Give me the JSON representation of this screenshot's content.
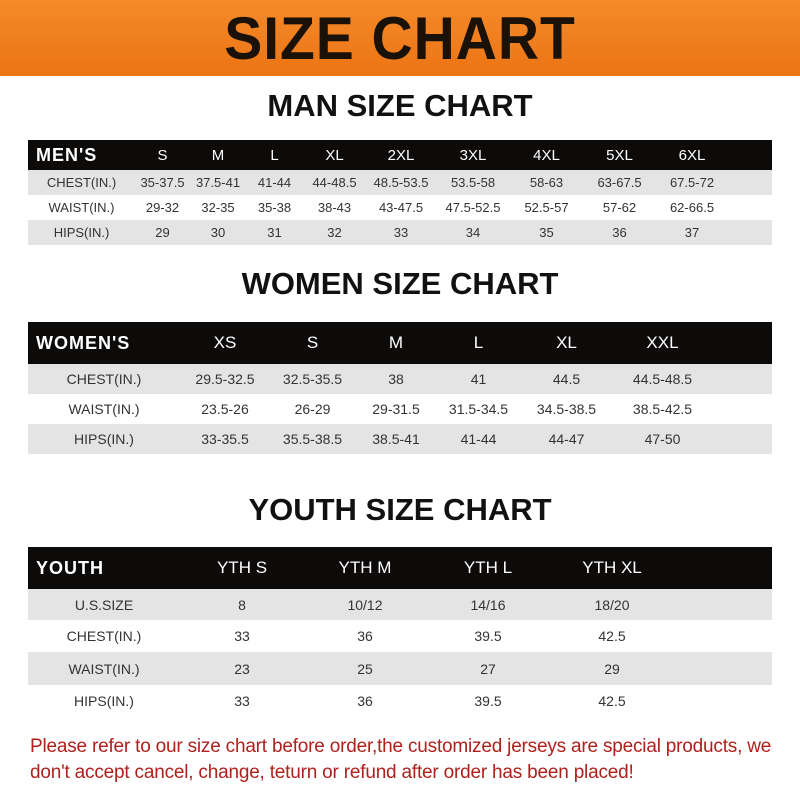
{
  "banner": "SIZE CHART",
  "men": {
    "title": "MAN SIZE CHART",
    "header": [
      "MEN'S",
      "S",
      "M",
      "L",
      "XL",
      "2XL",
      "3XL",
      "4XL",
      "5XL",
      "6XL"
    ],
    "rows": [
      [
        "CHEST(IN.)",
        "35-37.5",
        "37.5-41",
        "41-44",
        "44-48.5",
        "48.5-53.5",
        "53.5-58",
        "58-63",
        "63-67.5",
        "67.5-72"
      ],
      [
        "WAIST(IN.)",
        "29-32",
        "32-35",
        "35-38",
        "38-43",
        "43-47.5",
        "47.5-52.5",
        "52.5-57",
        "57-62",
        "62-66.5"
      ],
      [
        "HIPS(IN.)",
        "29",
        "30",
        "31",
        "32",
        "33",
        "34",
        "35",
        "36",
        "37"
      ]
    ]
  },
  "women": {
    "title": "WOMEN SIZE CHART",
    "header": [
      "WOMEN'S",
      "XS",
      "S",
      "M",
      "L",
      "XL",
      "XXL"
    ],
    "rows": [
      [
        "CHEST(IN.)",
        "29.5-32.5",
        "32.5-35.5",
        "38",
        "41",
        "44.5",
        "44.5-48.5"
      ],
      [
        "WAIST(IN.)",
        "23.5-26",
        "26-29",
        "29-31.5",
        "31.5-34.5",
        "34.5-38.5",
        "38.5-42.5"
      ],
      [
        "HIPS(IN.)",
        "33-35.5",
        "35.5-38.5",
        "38.5-41",
        "41-44",
        "44-47",
        "47-50"
      ]
    ]
  },
  "youth": {
    "title": "YOUTH SIZE CHART",
    "header": [
      "YOUTH",
      "YTH S",
      "YTH M",
      "YTH L",
      "YTH XL"
    ],
    "rows": [
      [
        "U.S.SIZE",
        "8",
        "10/12",
        "14/16",
        "18/20"
      ],
      [
        "CHEST(IN.)",
        "33",
        "36",
        "39.5",
        "42.5"
      ],
      [
        "WAIST(IN.)",
        "23",
        "25",
        "27",
        "29"
      ],
      [
        "HIPS(IN.)",
        "33",
        "36",
        "39.5",
        "42.5"
      ]
    ]
  },
  "note": "Please refer to our size chart before order,the customized jerseys are special products, we don't accept cancel, change, teturn or refund after order has been placed!",
  "colors": {
    "banner": "#f07d1a",
    "header_row": "#0d0a0a",
    "stripe": "#e4e4e4",
    "note": "#b0201c"
  }
}
